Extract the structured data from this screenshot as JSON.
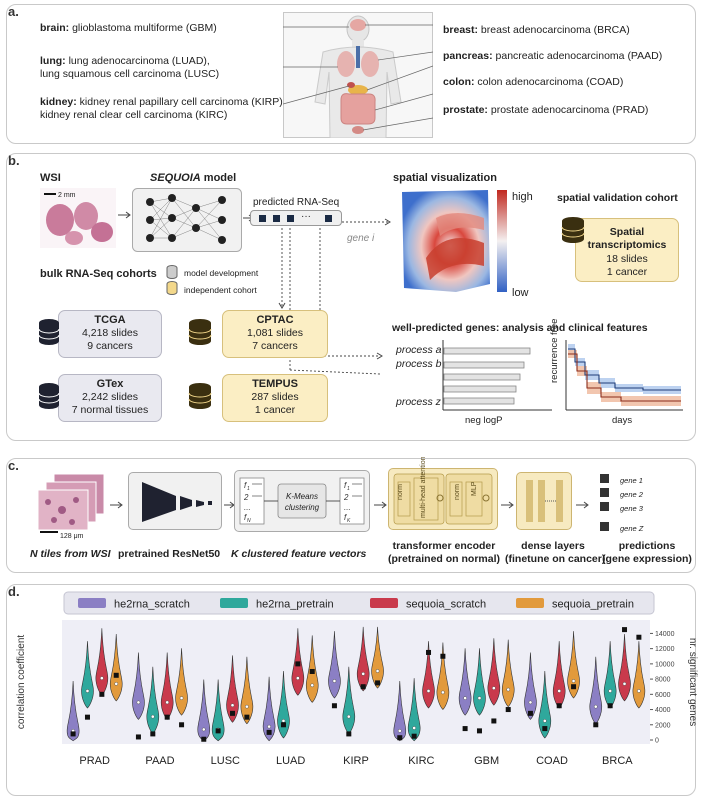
{
  "panel_a": {
    "label": "a.",
    "left": [
      {
        "organ": "brain:",
        "text1": " glioblastoma multiforme (GBM)",
        "text2": ""
      },
      {
        "organ": "lung:",
        "text1": " lung adenocarcinoma (LUAD),",
        "text2": "lung squamous cell carcinoma (LUSC)"
      },
      {
        "organ": "kidney:",
        "text1": " kidney renal papillary cell carcinoma (KIRP),",
        "text2": "kidney renal clear cell carcinoma (KIRC)"
      }
    ],
    "right": [
      {
        "organ": "breast:",
        "text": " breast adenocarcinoma (BRCA)"
      },
      {
        "organ": "pancreas:",
        "text": " pancreatic adenocarcinoma (PAAD)"
      },
      {
        "organ": "colon:",
        "text": " colon adenocarcinoma (COAD)"
      },
      {
        "organ": "prostate:",
        "text": " prostate adenocarcinoma (PRAD)"
      }
    ]
  },
  "panel_b": {
    "label": "b.",
    "wsi": "WSI",
    "scale": "2 mm",
    "model_prefix": "SEQUOIA",
    "model_suffix": " model",
    "predicted": "predicted RNA-Seq",
    "gene": "gene i",
    "bulk_title": "bulk RNA-Seq cohorts",
    "legend_dev": "model development",
    "legend_indep": "independent cohort",
    "cohorts": [
      {
        "name": "TCGA",
        "line1": "4,218 slides",
        "line2": "9 cancers"
      },
      {
        "name": "GTex",
        "line1": "2,242 slides",
        "line2": "7 normal tissues"
      },
      {
        "name": "CPTAC",
        "line1": "1,081 slides",
        "line2": "7 cancers"
      },
      {
        "name": "TEMPUS",
        "line1": "287 slides",
        "line2": "1 cancer"
      }
    ],
    "spatial_vis": "spatial visualization",
    "high": "high",
    "low": "low",
    "spatial_cohort_title": "spatial validation cohort",
    "spatial_box": {
      "name1": "Spatial",
      "name2": "transcriptomics",
      "line1": "18 slides",
      "line2": "1 cancer"
    },
    "well_predicted": "well-predicted genes: analysis and clinical features",
    "processes": [
      "process a",
      "process b",
      "process z"
    ],
    "neg_logp": "neg logP",
    "recurrence": "recurrence free",
    "days": "days"
  },
  "panel_c": {
    "label": "c.",
    "scale": "128 μm",
    "steps": [
      {
        "line1": "N tiles from WSI",
        "line2": ""
      },
      {
        "line1": "pretrained ResNet50",
        "line2": ""
      },
      {
        "line1": "K clustered feature vectors",
        "line2": ""
      },
      {
        "line1": "transformer encoder",
        "line2": "(pretrained on normal)"
      },
      {
        "line1": "dense layers",
        "line2": "(finetune on cancer)"
      },
      {
        "line1": "predictions",
        "line2": "(gene expression)"
      }
    ],
    "kmeans1": "K-Means",
    "kmeans2": "clustering",
    "norm": "norm",
    "mha": "multi-head attention",
    "mlp": "MLP",
    "genes": [
      "gene 1",
      "gene 2",
      "gene 3",
      "gene Z"
    ]
  },
  "panel_d": {
    "label": "d."
  },
  "chart_data": {
    "type": "violin",
    "categories": [
      "PRAD",
      "PAAD",
      "LUSC",
      "LUAD",
      "KIRP",
      "KIRC",
      "GBM",
      "COAD",
      "BRCA"
    ],
    "ylabel": "correlation coefficient",
    "y2label": "nr. significant genes",
    "y2ticks": [
      "0",
      "2000",
      "4000",
      "6000",
      "8000",
      "10000",
      "12000",
      "14000"
    ],
    "legend": [
      {
        "name": "he2rna_scratch",
        "color": "#8b7fc4"
      },
      {
        "name": "he2rna_pretrain",
        "color": "#2fa89c"
      },
      {
        "name": "sequoia_scratch",
        "color": "#c93a4c"
      },
      {
        "name": "sequoia_pretrain",
        "color": "#e29a3c"
      }
    ],
    "series": [
      {
        "name": "he2rna_scratch",
        "median": [
          0.05,
          0.25,
          0.06,
          0.08,
          0.4,
          0.05,
          0.28,
          0.25,
          0.22
        ]
      },
      {
        "name": "he2rna_pretrain",
        "median": [
          0.33,
          0.15,
          0.06,
          0.12,
          0.15,
          0.07,
          0.28,
          0.12,
          0.33
        ]
      },
      {
        "name": "sequoia_scratch",
        "median": [
          0.42,
          0.25,
          0.23,
          0.42,
          0.45,
          0.33,
          0.35,
          0.33,
          0.38
        ]
      },
      {
        "name": "sequoia_pretrain",
        "median": [
          0.38,
          0.28,
          0.22,
          0.37,
          0.47,
          0.32,
          0.34,
          0.4,
          0.33
        ]
      }
    ],
    "significant_genes": [
      [
        800,
        3000,
        6000,
        8500
      ],
      [
        400,
        800,
        3000,
        2000
      ],
      [
        100,
        1200,
        3500,
        3000
      ],
      [
        1000,
        2000,
        10000,
        9000
      ],
      [
        4500,
        800,
        7000,
        7500
      ],
      [
        300,
        500,
        11500,
        11000
      ],
      [
        1500,
        1200,
        2500,
        4000
      ],
      [
        3500,
        1500,
        4500,
        7000
      ],
      [
        2000,
        4500,
        14500,
        13500
      ]
    ]
  }
}
